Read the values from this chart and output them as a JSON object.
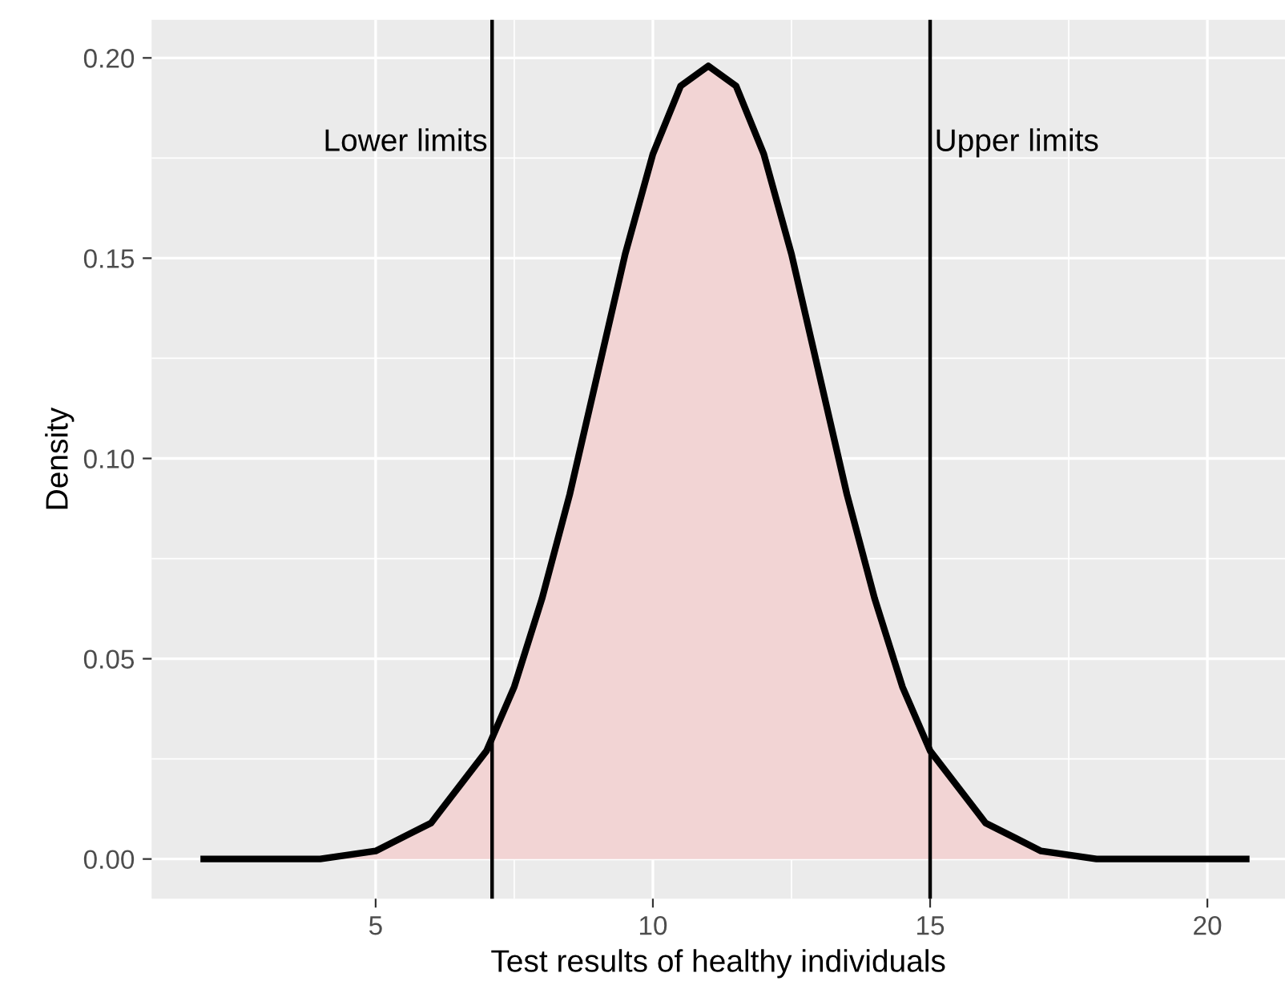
{
  "chart_data": {
    "type": "area",
    "xlabel": "Test results of healthy individuals",
    "ylabel": "Density",
    "x": [
      1.9,
      3,
      4,
      5,
      6,
      7,
      7.5,
      8,
      8.5,
      9,
      9.5,
      10,
      10.5,
      11,
      11.5,
      12,
      12.5,
      13,
      13.5,
      14,
      14.5,
      15,
      16,
      17,
      18,
      19,
      20,
      20.7
    ],
    "series": [
      {
        "color": "#f2d4d4",
        "values": [
          0.0,
          0.0,
          0.0,
          0.002,
          0.009,
          0.027,
          0.043,
          0.065,
          0.091,
          0.121,
          0.151,
          0.176,
          0.193,
          0.198,
          0.193,
          0.176,
          0.151,
          0.121,
          0.091,
          0.065,
          0.043,
          0.027,
          0.009,
          0.002,
          0.0,
          0.0,
          0.0,
          0.0
        ]
      }
    ],
    "xlim": [
      0.96,
      21.4
    ],
    "ylim": [
      -0.0099,
      0.2095
    ],
    "xticks": [
      5,
      10,
      15,
      20
    ],
    "yticks": [
      {
        "value": 0,
        "label": "0.00"
      },
      {
        "value": 0.05,
        "label": "0.05"
      },
      {
        "value": 0.1,
        "label": "0.10"
      },
      {
        "value": 0.15,
        "label": "0.15"
      },
      {
        "value": 0.2,
        "label": "0.20"
      }
    ],
    "grid": true,
    "legend": false,
    "ref_lines": [
      {
        "axis": "x",
        "value": 7.1,
        "label": "Lower limits",
        "color": "#000000"
      },
      {
        "axis": "x",
        "value": 15,
        "label": "Upper limits",
        "color": "#000000"
      }
    ]
  }
}
